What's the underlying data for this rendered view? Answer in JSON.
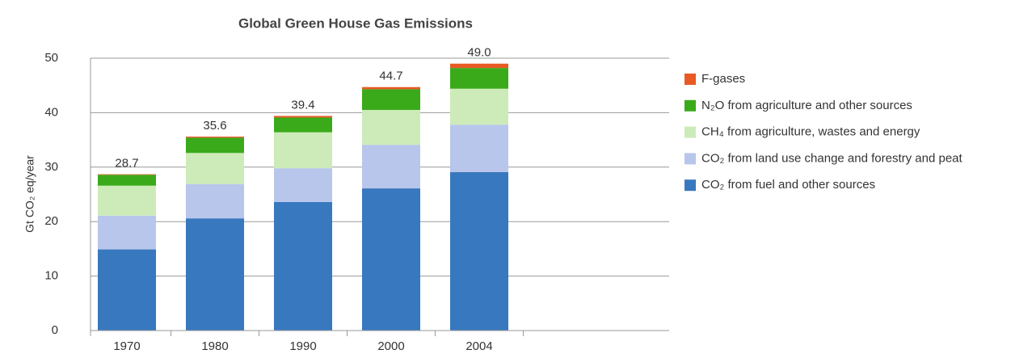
{
  "chart_data": {
    "type": "bar",
    "stacked": true,
    "title": "Global Green House Gas Emissions",
    "y_label": "Gt CO₂ eq/year",
    "categories": [
      "1970",
      "1980",
      "1990",
      "2000",
      "2004"
    ],
    "series": [
      {
        "name": "CO₂ from fuel and other sources",
        "color": "#3878be",
        "values": [
          14.9,
          20.6,
          23.6,
          26.1,
          29.1
        ]
      },
      {
        "name": "CO₂ from land use change and forestry and peat",
        "color": "#b8c6ec",
        "values": [
          6.2,
          6.3,
          6.2,
          8.0,
          8.7
        ]
      },
      {
        "name": "CH₄ from agriculture, wastes and energy",
        "color": "#cdebb8",
        "values": [
          5.5,
          5.7,
          6.6,
          6.4,
          6.6
        ]
      },
      {
        "name": "N₂O from agriculture and other sources",
        "color": "#3aaa1a",
        "values": [
          2.0,
          2.8,
          2.7,
          3.8,
          3.8
        ]
      },
      {
        "name": "F-gases",
        "color": "#e85a24",
        "values": [
          0.1,
          0.2,
          0.3,
          0.4,
          0.8
        ]
      }
    ],
    "totals": [
      28.7,
      35.6,
      39.4,
      44.7,
      {
        "value": 49.0,
        "label": "49.0"
      }
    ],
    "ylim": [
      0,
      50
    ],
    "yticks": [
      0,
      10,
      20,
      30,
      40,
      50
    ],
    "grid": true
  }
}
